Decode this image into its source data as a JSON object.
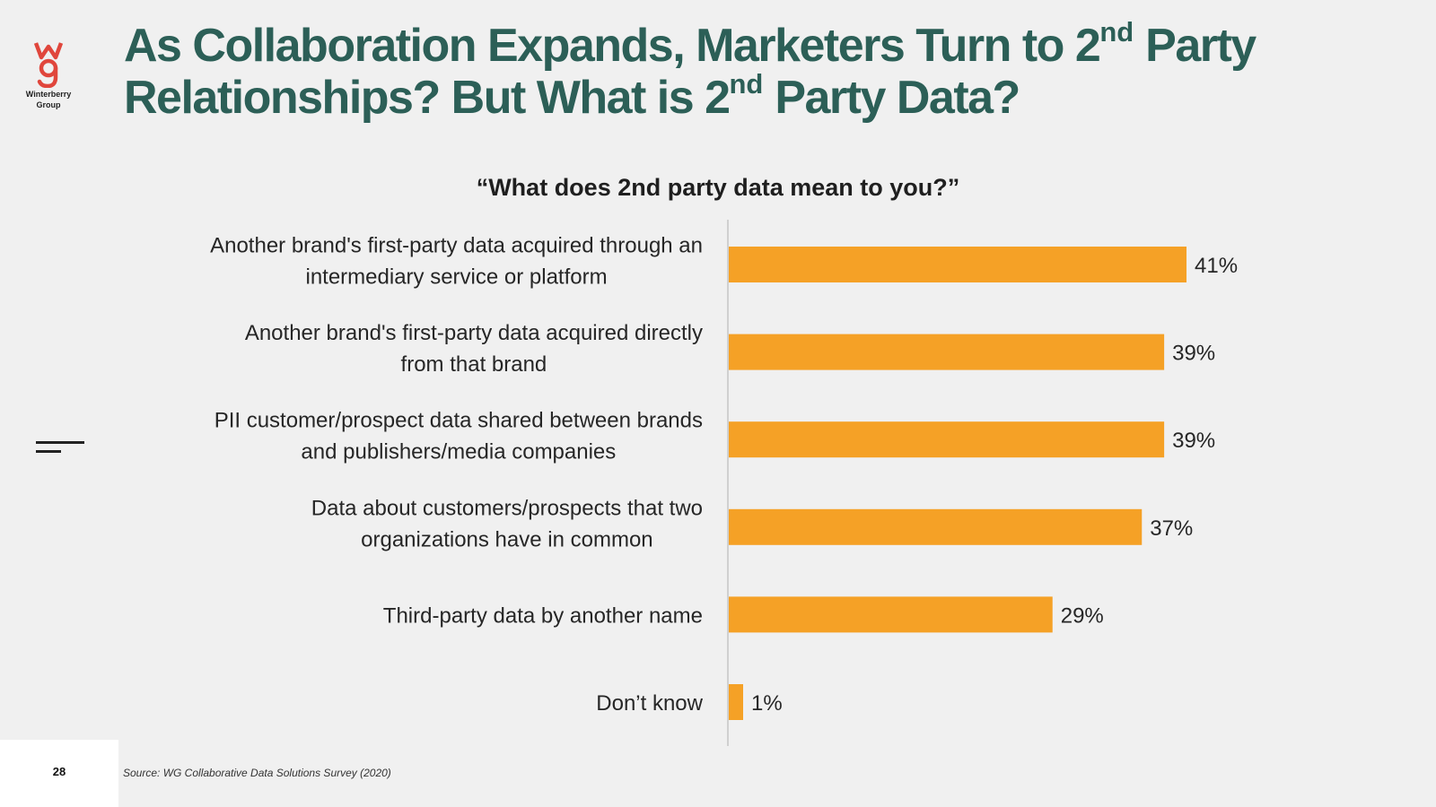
{
  "logo": {
    "text_line1": "Winterberry",
    "text_line2": "Group",
    "brand_color": "#e0463c"
  },
  "title": {
    "part1": "As Collaboration Expands, Marketers Turn to 2",
    "sup1": "nd",
    "part2": " Party Relationships? But What is 2",
    "sup2": "nd",
    "part3": " Party Data?"
  },
  "question": "“What does 2nd party data mean to you?”",
  "chart_data": {
    "type": "bar",
    "orientation": "horizontal",
    "title": "“What does 2nd party data mean to you?”",
    "categories": [
      [
        "Another brand's first-party data acquired through an",
        "intermediary service or platform"
      ],
      [
        "Another brand's first-party data acquired directly",
        "from that brand"
      ],
      [
        "PII customer/prospect data shared between brands",
        "and publishers/media companies"
      ],
      [
        "Data about customers/prospects that two",
        "organizations have in common"
      ],
      [
        "Third-party data by another name"
      ],
      [
        "Don’t know"
      ]
    ],
    "values": [
      41,
      39,
      39,
      37,
      29,
      1
    ],
    "value_labels": [
      "41%",
      "39%",
      "39%",
      "37%",
      "29%",
      "1%"
    ],
    "xlim": [
      0,
      100
    ],
    "bar_color": "#f5a126",
    "axis_color": "#d0d0d0"
  },
  "footer": {
    "page_number": "28",
    "source": "Source: WG Collaborative Data Solutions Survey (2020)"
  }
}
